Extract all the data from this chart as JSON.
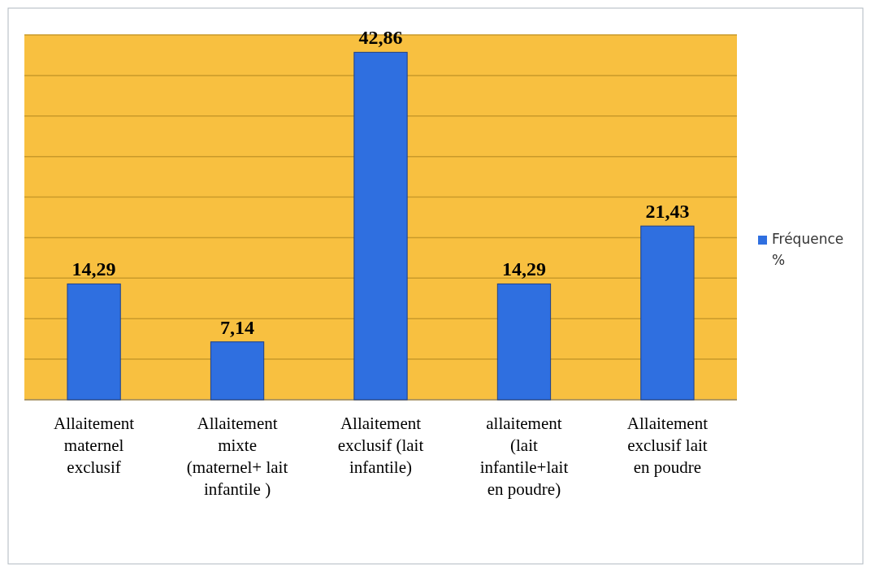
{
  "chart_data": {
    "type": "bar",
    "categories": [
      "Allaitement maternel exclusif",
      "Allaitement mixte (maternel+ lait infantile )",
      "Allaitement exclusif (lait infantile)",
      "allaitement (lait infantile+lait en poudre)",
      "Allaitement exclusif lait en poudre"
    ],
    "series": [
      {
        "name": "Fréquence %",
        "color": "#2f6fe0",
        "values": [
          14.29,
          7.14,
          42.86,
          14.29,
          21.43
        ],
        "value_labels": [
          "14,29",
          "7,14",
          "42,86",
          "14,29",
          "21,43"
        ]
      }
    ],
    "ylim": [
      0,
      45
    ],
    "yticks": [
      {
        "value": 0,
        "label": null
      },
      {
        "value": 5,
        "label": null
      },
      {
        "value": 10,
        "label": null
      },
      {
        "value": 15,
        "label": null
      },
      {
        "value": 20,
        "label": null
      },
      {
        "value": 25,
        "label": null
      },
      {
        "value": 30,
        "label": null
      },
      {
        "value": 35,
        "label": null
      },
      {
        "value": 40,
        "label": null
      },
      {
        "value": 45,
        "label": null
      }
    ],
    "grid": "y",
    "legend": "right",
    "tick_labels": "x"
  }
}
